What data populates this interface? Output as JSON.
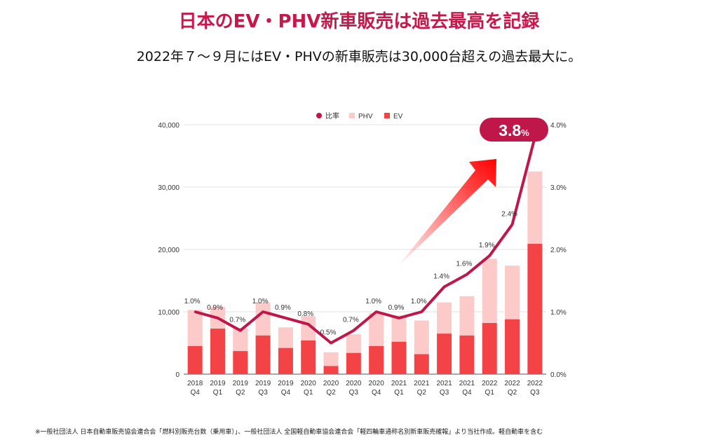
{
  "title": "日本のEV・PHV新車販売は過去最高を記録",
  "subtitle": "2022年７～９月にはEV・PHVの新車販売は30,000台超えの過去最大に。",
  "footnote": "※一般社団法人 日本自動車販売協会連合会「燃料別販売台数（乗用車）」、一般社団法人 全国軽自動車協会連合会「軽四輪車通称名別新車販売確報」より当社作成。軽自動車を含む",
  "colors": {
    "ratio": "#c0174a",
    "phv": "#fdcaca",
    "ev": "#f44346",
    "accent": "#c8174b"
  },
  "chart_data": {
    "type": "bar",
    "stacked": true,
    "categories": [
      "2018 Q4",
      "2019 Q1",
      "2019 Q2",
      "2019 Q3",
      "2019 Q4",
      "2020 Q1",
      "2020 Q2",
      "2020 Q3",
      "2020 Q4",
      "2021 Q1",
      "2021 Q2",
      "2021 Q3",
      "2021 Q4",
      "2022 Q1",
      "2022 Q2",
      "2022 Q3"
    ],
    "legend": [
      "比率",
      "PHV",
      "EV"
    ],
    "legend_position": "top",
    "series": [
      {
        "name": "EV",
        "values": [
          4500,
          7300,
          3700,
          6200,
          4200,
          5400,
          1300,
          3400,
          4500,
          5200,
          3200,
          6500,
          6200,
          8200,
          8800,
          20900
        ]
      },
      {
        "name": "PHV",
        "values": [
          5800,
          3500,
          3700,
          5300,
          3300,
          3900,
          2200,
          3000,
          5300,
          4200,
          5400,
          5000,
          6300,
          10300,
          8600,
          11600
        ]
      },
      {
        "name": "比率",
        "type": "line",
        "axis": "right",
        "values": [
          1.0,
          0.9,
          0.7,
          1.0,
          0.9,
          0.8,
          0.5,
          0.7,
          1.0,
          0.9,
          1.0,
          1.4,
          1.6,
          1.9,
          2.4,
          3.8
        ],
        "labels": [
          "1.0%",
          "0.9%",
          "0.7%",
          "1.0%",
          "0.9%",
          "0.8%",
          "0.5%",
          "0.7%",
          "1.0%",
          "0.9%",
          "1.0%",
          "1.4%",
          "1.6%",
          "1.9%",
          "2.4%",
          ""
        ]
      }
    ],
    "ylim": [
      0,
      40000
    ],
    "yticks": [
      "0",
      "10,000",
      "20,000",
      "30,000",
      "40,000"
    ],
    "y2lim": [
      0,
      4.0
    ],
    "y2ticks": [
      "0.0%",
      "1.0%",
      "2.0%",
      "3.0%",
      "4.0%"
    ],
    "grid": true,
    "callout": {
      "value": "3.8",
      "unit": "%"
    }
  }
}
